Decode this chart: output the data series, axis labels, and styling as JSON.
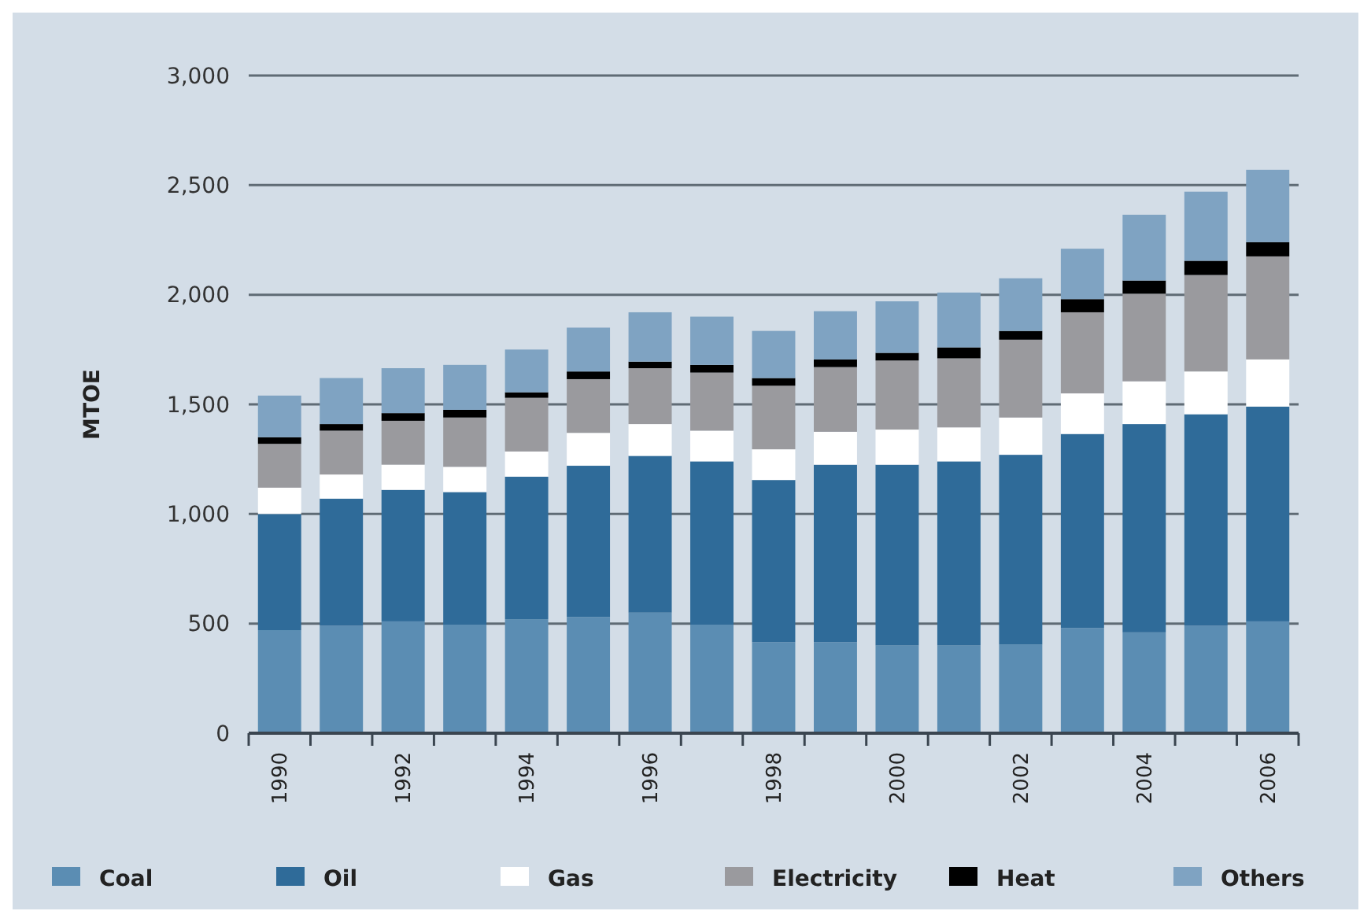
{
  "chart_data": {
    "type": "bar",
    "stacked": true,
    "ylabel": "MTOE",
    "categories": [
      "1990",
      null,
      "1992",
      null,
      "1994",
      null,
      "1996",
      null,
      "1998",
      null,
      "2000",
      null,
      "2002",
      null,
      "2004",
      null,
      "2006"
    ],
    "series": [
      {
        "name": "Coal",
        "color": "#5b8db3",
        "values": [
          470,
          490,
          510,
          495,
          520,
          530,
          550,
          495,
          415,
          415,
          400,
          400,
          405,
          480,
          460,
          490,
          510
        ]
      },
      {
        "name": "Oil",
        "color": "#2f6b99",
        "values": [
          530,
          580,
          600,
          605,
          650,
          690,
          715,
          745,
          740,
          810,
          825,
          840,
          865,
          885,
          950,
          965,
          980
        ]
      },
      {
        "name": "Gas",
        "color": "#ffffff",
        "values": [
          120,
          110,
          115,
          115,
          115,
          150,
          145,
          140,
          140,
          150,
          160,
          155,
          170,
          185,
          195,
          195,
          215
        ]
      },
      {
        "name": "Electricity",
        "color": "#9a9a9e",
        "values": [
          200,
          200,
          200,
          225,
          245,
          245,
          255,
          265,
          290,
          295,
          315,
          315,
          355,
          370,
          400,
          440,
          470
        ]
      },
      {
        "name": "Heat",
        "color": "#000000",
        "values": [
          30,
          30,
          35,
          35,
          25,
          35,
          30,
          35,
          35,
          35,
          35,
          50,
          40,
          60,
          60,
          65,
          65
        ]
      },
      {
        "name": "Others",
        "color": "#7fa3c2",
        "values": [
          190,
          210,
          205,
          205,
          195,
          200,
          225,
          220,
          215,
          220,
          235,
          250,
          240,
          230,
          300,
          315,
          330
        ]
      }
    ],
    "ylim": [
      0,
      3000
    ],
    "yticks": [
      {
        "value": 0,
        "label": "0"
      },
      {
        "value": 500,
        "label": "500"
      },
      {
        "value": 1000,
        "label": "1,000"
      },
      {
        "value": 1500,
        "label": "1,500"
      },
      {
        "value": 2000,
        "label": "2,000"
      },
      {
        "value": 2500,
        "label": "2,500"
      },
      {
        "value": 3000,
        "label": "3,000"
      }
    ],
    "grid": "y",
    "legend": "bottom"
  }
}
